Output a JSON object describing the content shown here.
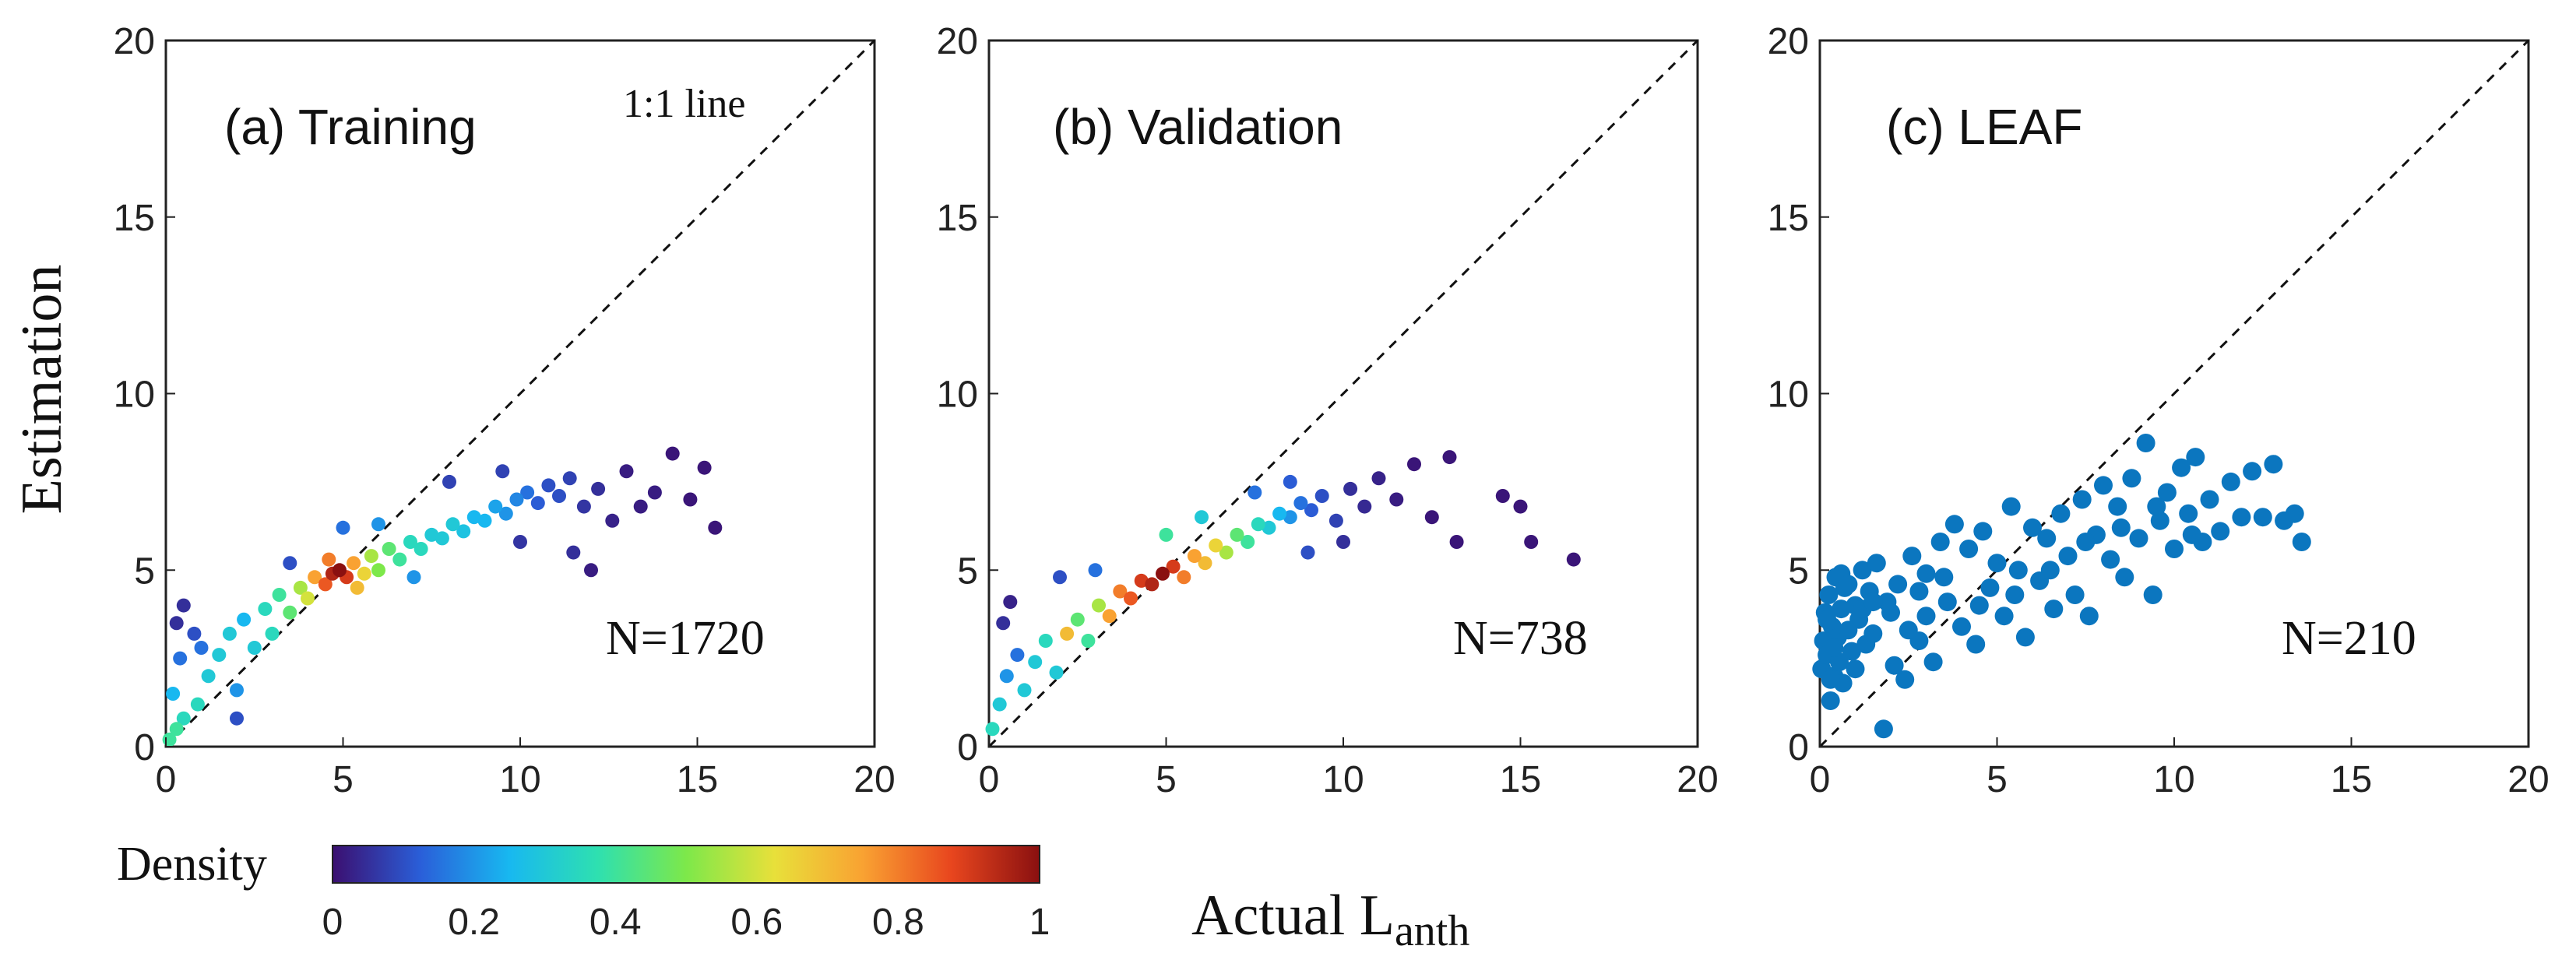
{
  "ylabel": "Estimation",
  "xlabel": {
    "main": "Actual L",
    "sub": "anth"
  },
  "identity_label": "1:1 line",
  "colorbar": {
    "label": "Density",
    "range": [
      0,
      1
    ],
    "ticks": [
      "0",
      "0.2",
      "0.4",
      "0.6",
      "0.8",
      "1"
    ],
    "colormap": [
      "#3b0f70",
      "#2a5fd9",
      "#18b8f0",
      "#2ee0b0",
      "#7de84a",
      "#e8e03a",
      "#f9a232",
      "#e8461e",
      "#8a1010"
    ]
  },
  "axis_ticks": [
    "0",
    "5",
    "10",
    "15",
    "20"
  ],
  "chart_data": [
    {
      "type": "scatter",
      "title": "(a) Training",
      "annotation": "N=1720",
      "xlim": [
        0,
        20
      ],
      "ylim": [
        0,
        20
      ],
      "colored_by_density": true,
      "points": [
        [
          0.1,
          0.2,
          0.4
        ],
        [
          0.3,
          0.5,
          0.4
        ],
        [
          0.5,
          0.8,
          0.35
        ],
        [
          0.2,
          1.5,
          0.25
        ],
        [
          0.4,
          2.5,
          0.15
        ],
        [
          0.3,
          3.5,
          0.05
        ],
        [
          0.5,
          4.0,
          0.05
        ],
        [
          0.8,
          3.2,
          0.1
        ],
        [
          0.9,
          1.2,
          0.35
        ],
        [
          1.2,
          2.0,
          0.3
        ],
        [
          1.5,
          2.6,
          0.3
        ],
        [
          1.8,
          3.2,
          0.3
        ],
        [
          2.0,
          1.6,
          0.2
        ],
        [
          2.2,
          3.6,
          0.25
        ],
        [
          2.5,
          2.8,
          0.3
        ],
        [
          2.8,
          3.9,
          0.35
        ],
        [
          3.0,
          3.2,
          0.35
        ],
        [
          3.2,
          4.3,
          0.4
        ],
        [
          3.5,
          3.8,
          0.45
        ],
        [
          3.8,
          4.5,
          0.55
        ],
        [
          4.0,
          4.2,
          0.6
        ],
        [
          4.2,
          4.8,
          0.75
        ],
        [
          4.5,
          4.6,
          0.85
        ],
        [
          4.7,
          4.9,
          0.95
        ],
        [
          4.9,
          5.0,
          1.0
        ],
        [
          5.1,
          4.8,
          0.9
        ],
        [
          5.3,
          5.2,
          0.75
        ],
        [
          5.6,
          4.9,
          0.65
        ],
        [
          5.8,
          5.4,
          0.55
        ],
        [
          6.0,
          5.0,
          0.5
        ],
        [
          6.3,
          5.6,
          0.45
        ],
        [
          6.6,
          5.3,
          0.4
        ],
        [
          6.9,
          5.8,
          0.35
        ],
        [
          7.2,
          5.6,
          0.35
        ],
        [
          7.5,
          6.0,
          0.3
        ],
        [
          7.8,
          5.9,
          0.3
        ],
        [
          8.1,
          6.3,
          0.3
        ],
        [
          8.4,
          6.1,
          0.28
        ],
        [
          8.7,
          6.5,
          0.25
        ],
        [
          9.0,
          6.4,
          0.25
        ],
        [
          9.3,
          6.8,
          0.22
        ],
        [
          9.6,
          6.6,
          0.2
        ],
        [
          9.9,
          7.0,
          0.18
        ],
        [
          10.2,
          7.2,
          0.15
        ],
        [
          10.5,
          6.9,
          0.12
        ],
        [
          10.8,
          7.4,
          0.1
        ],
        [
          11.1,
          7.1,
          0.1
        ],
        [
          11.4,
          7.6,
          0.08
        ],
        [
          11.8,
          6.8,
          0.06
        ],
        [
          12.2,
          7.3,
          0.05
        ],
        [
          12.6,
          6.4,
          0.03
        ],
        [
          13.0,
          7.8,
          0.02
        ],
        [
          13.4,
          6.8,
          0.02
        ],
        [
          13.8,
          7.2,
          0.02
        ],
        [
          14.3,
          8.3,
          0.01
        ],
        [
          14.8,
          7.0,
          0.01
        ],
        [
          15.2,
          7.9,
          0.01
        ],
        [
          15.5,
          6.2,
          0.01
        ],
        [
          11.5,
          5.5,
          0.05
        ],
        [
          12.0,
          5.0,
          0.02
        ],
        [
          8.0,
          7.5,
          0.08
        ],
        [
          9.5,
          7.8,
          0.08
        ],
        [
          2.0,
          0.8,
          0.1
        ],
        [
          6.0,
          6.3,
          0.2
        ],
        [
          5.0,
          6.2,
          0.15
        ],
        [
          3.5,
          5.2,
          0.1
        ],
        [
          7.0,
          4.8,
          0.2
        ],
        [
          1.0,
          2.8,
          0.15
        ],
        [
          10.0,
          5.8,
          0.06
        ],
        [
          4.6,
          5.3,
          0.8
        ],
        [
          5.4,
          4.5,
          0.7
        ]
      ]
    },
    {
      "type": "scatter",
      "title": "(b) Validation",
      "annotation": "N=738",
      "xlim": [
        0,
        20
      ],
      "ylim": [
        0,
        20
      ],
      "colored_by_density": true,
      "points": [
        [
          0.1,
          0.5,
          0.35
        ],
        [
          0.3,
          1.2,
          0.3
        ],
        [
          0.5,
          2.0,
          0.2
        ],
        [
          0.4,
          3.5,
          0.05
        ],
        [
          0.6,
          4.1,
          0.03
        ],
        [
          0.8,
          2.6,
          0.15
        ],
        [
          1.0,
          1.6,
          0.3
        ],
        [
          1.3,
          2.4,
          0.3
        ],
        [
          1.6,
          3.0,
          0.35
        ],
        [
          1.9,
          2.1,
          0.3
        ],
        [
          2.2,
          3.2,
          0.7
        ],
        [
          2.5,
          3.6,
          0.45
        ],
        [
          2.8,
          3.0,
          0.4
        ],
        [
          3.1,
          4.0,
          0.55
        ],
        [
          3.4,
          3.7,
          0.75
        ],
        [
          3.7,
          4.4,
          0.8
        ],
        [
          4.0,
          4.2,
          0.85
        ],
        [
          4.3,
          4.7,
          0.9
        ],
        [
          4.6,
          4.6,
          0.95
        ],
        [
          4.9,
          4.9,
          1.0
        ],
        [
          5.2,
          5.1,
          0.9
        ],
        [
          5.5,
          4.8,
          0.8
        ],
        [
          5.8,
          5.4,
          0.75
        ],
        [
          6.1,
          5.2,
          0.7
        ],
        [
          6.4,
          5.7,
          0.65
        ],
        [
          6.7,
          5.5,
          0.55
        ],
        [
          7.0,
          6.0,
          0.45
        ],
        [
          7.3,
          5.8,
          0.4
        ],
        [
          7.6,
          6.3,
          0.35
        ],
        [
          7.9,
          6.2,
          0.3
        ],
        [
          8.2,
          6.6,
          0.25
        ],
        [
          8.5,
          6.5,
          0.2
        ],
        [
          8.8,
          6.9,
          0.15
        ],
        [
          9.1,
          6.7,
          0.12
        ],
        [
          9.4,
          7.1,
          0.1
        ],
        [
          9.8,
          6.4,
          0.08
        ],
        [
          10.2,
          7.3,
          0.05
        ],
        [
          10.6,
          6.8,
          0.04
        ],
        [
          11.0,
          7.6,
          0.03
        ],
        [
          11.5,
          7.0,
          0.02
        ],
        [
          12.0,
          8.0,
          0.01
        ],
        [
          12.5,
          6.5,
          0.01
        ],
        [
          13.0,
          8.2,
          0.01
        ],
        [
          13.2,
          5.8,
          0.01
        ],
        [
          14.5,
          7.1,
          0.01
        ],
        [
          15.0,
          6.8,
          0.01
        ],
        [
          15.3,
          5.8,
          0.01
        ],
        [
          16.5,
          5.3,
          0.01
        ],
        [
          9.0,
          5.5,
          0.1
        ],
        [
          10.0,
          5.8,
          0.05
        ],
        [
          6.0,
          6.5,
          0.3
        ],
        [
          3.0,
          5.0,
          0.15
        ],
        [
          2.0,
          4.8,
          0.1
        ],
        [
          5.0,
          6.0,
          0.4
        ],
        [
          7.5,
          7.2,
          0.15
        ],
        [
          8.5,
          7.5,
          0.12
        ]
      ]
    },
    {
      "type": "scatter",
      "title": "(c) LEAF",
      "annotation": "N=210",
      "xlim": [
        0,
        20
      ],
      "ylim": [
        0,
        20
      ],
      "colored_by_density": false,
      "color": "#0b76bf",
      "points": [
        [
          0.05,
          2.2
        ],
        [
          0.1,
          3.0
        ],
        [
          0.15,
          3.8
        ],
        [
          0.2,
          2.6
        ],
        [
          0.25,
          4.3
        ],
        [
          0.3,
          1.3
        ],
        [
          0.35,
          3.4
        ],
        [
          0.4,
          2.0
        ],
        [
          0.45,
          4.8
        ],
        [
          0.5,
          3.1
        ],
        [
          0.55,
          2.4
        ],
        [
          0.6,
          3.9
        ],
        [
          0.65,
          1.8
        ],
        [
          0.7,
          4.5
        ],
        [
          0.8,
          3.3
        ],
        [
          0.9,
          2.7
        ],
        [
          1.0,
          4.0
        ],
        [
          1.1,
          3.6
        ],
        [
          1.2,
          5.0
        ],
        [
          1.3,
          2.9
        ],
        [
          1.4,
          4.4
        ],
        [
          1.5,
          3.2
        ],
        [
          1.6,
          5.2
        ],
        [
          1.8,
          0.5
        ],
        [
          2.0,
          3.8
        ],
        [
          2.2,
          4.6
        ],
        [
          2.4,
          1.9
        ],
        [
          2.6,
          5.4
        ],
        [
          2.8,
          3.0
        ],
        [
          3.0,
          4.9
        ],
        [
          3.2,
          2.4
        ],
        [
          3.4,
          5.8
        ],
        [
          3.6,
          4.1
        ],
        [
          3.8,
          6.3
        ],
        [
          4.0,
          3.4
        ],
        [
          4.2,
          5.6
        ],
        [
          4.4,
          2.9
        ],
        [
          4.6,
          6.1
        ],
        [
          4.8,
          4.5
        ],
        [
          5.0,
          5.2
        ],
        [
          5.2,
          3.7
        ],
        [
          5.4,
          6.8
        ],
        [
          5.6,
          5.0
        ],
        [
          5.8,
          3.1
        ],
        [
          6.0,
          6.2
        ],
        [
          6.2,
          4.7
        ],
        [
          6.4,
          5.9
        ],
        [
          6.6,
          3.9
        ],
        [
          6.8,
          6.6
        ],
        [
          7.0,
          5.4
        ],
        [
          7.2,
          4.3
        ],
        [
          7.4,
          7.0
        ],
        [
          7.6,
          3.7
        ],
        [
          7.8,
          6.0
        ],
        [
          8.0,
          7.4
        ],
        [
          8.2,
          5.3
        ],
        [
          8.4,
          6.8
        ],
        [
          8.6,
          4.8
        ],
        [
          8.8,
          7.6
        ],
        [
          9.0,
          5.9
        ],
        [
          9.2,
          8.6
        ],
        [
          9.4,
          4.3
        ],
        [
          9.6,
          6.4
        ],
        [
          9.8,
          7.2
        ],
        [
          10.0,
          5.6
        ],
        [
          10.2,
          7.9
        ],
        [
          10.4,
          6.6
        ],
        [
          10.6,
          8.2
        ],
        [
          10.8,
          5.8
        ],
        [
          11.0,
          7.0
        ],
        [
          11.3,
          6.1
        ],
        [
          11.6,
          7.5
        ],
        [
          11.9,
          6.5
        ],
        [
          12.2,
          7.8
        ],
        [
          12.5,
          6.5
        ],
        [
          12.8,
          8.0
        ],
        [
          13.1,
          6.4
        ],
        [
          13.4,
          6.6
        ],
        [
          13.6,
          5.8
        ],
        [
          1.0,
          2.2
        ],
        [
          0.3,
          1.9
        ],
        [
          0.6,
          4.9
        ],
        [
          1.9,
          4.1
        ],
        [
          2.5,
          3.3
        ],
        [
          3.5,
          4.8
        ],
        [
          4.5,
          4.0
        ],
        [
          5.5,
          4.3
        ],
        [
          6.5,
          5.0
        ],
        [
          7.5,
          5.8
        ],
        [
          8.5,
          6.2
        ],
        [
          9.5,
          6.8
        ],
        [
          10.5,
          6.0
        ],
        [
          3.0,
          3.7
        ],
        [
          2.1,
          2.3
        ],
        [
          1.2,
          3.9
        ],
        [
          0.8,
          4.6
        ],
        [
          0.2,
          3.6
        ],
        [
          0.4,
          2.8
        ],
        [
          1.5,
          4.1
        ],
        [
          2.8,
          4.4
        ]
      ]
    }
  ]
}
